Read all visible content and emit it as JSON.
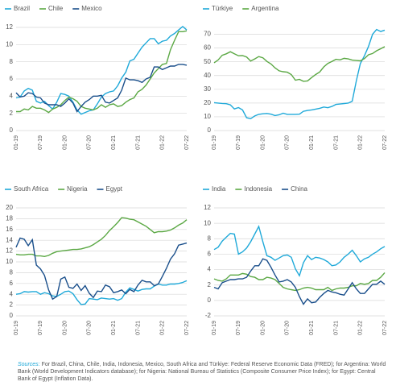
{
  "chart_data": [
    {
      "type": "line",
      "categories": [
        "01-19",
        null,
        null,
        null,
        null,
        null,
        "07-19",
        null,
        null,
        null,
        null,
        null,
        "01-20",
        null,
        null,
        null,
        null,
        null,
        "07-20",
        null,
        null,
        null,
        null,
        null,
        "01-21",
        null,
        null,
        null,
        null,
        null,
        "07-21",
        null,
        null,
        null,
        null,
        null,
        "01-22",
        null,
        null,
        null,
        null,
        null,
        "07-22"
      ],
      "ylim": [
        0,
        12
      ],
      "yticks": [
        0,
        2,
        4,
        6,
        8,
        10,
        12
      ],
      "grid": true,
      "series": [
        {
          "name": "Brazil",
          "color": "#1fa9d9",
          "values": [
            3.8,
            3.9,
            4.6,
            4.9,
            4.7,
            3.4,
            3.2,
            3.4,
            2.9,
            2.5,
            3.3,
            4.3,
            4.2,
            4.0,
            3.3,
            2.4,
            1.9,
            2.1,
            2.3,
            2.4,
            3.1,
            3.9,
            4.3,
            4.5,
            4.6,
            5.2,
            6.1,
            6.8,
            8.1,
            8.3,
            9.0,
            9.7,
            10.2,
            10.7,
            10.7,
            10.1,
            10.4,
            10.5,
            11.0,
            11.3,
            11.7,
            12.1,
            11.7
          ]
        },
        {
          "name": "Chile",
          "color": "#5ba844",
          "values": [
            2.2,
            2.2,
            2.5,
            2.4,
            2.8,
            2.6,
            2.6,
            2.4,
            2.1,
            2.5,
            2.7,
            3.0,
            3.5,
            3.9,
            3.7,
            3.4,
            2.8,
            2.6,
            2.5,
            2.4,
            2.6,
            3.0,
            2.7,
            3.0,
            3.1,
            2.8,
            2.9,
            3.3,
            3.6,
            3.8,
            4.5,
            4.8,
            5.3,
            6.0,
            6.7,
            7.2,
            7.7,
            7.8,
            9.4,
            10.5,
            11.5,
            11.5,
            11.6
          ]
        },
        {
          "name": "Mexico",
          "color": "#1a4f8b",
          "values": [
            4.4,
            3.9,
            4.0,
            4.4,
            4.3,
            3.9,
            3.8,
            3.2,
            3.0,
            3.0,
            3.0,
            2.8,
            3.2,
            3.7,
            3.2,
            2.2,
            2.8,
            3.3,
            3.6,
            4.0,
            4.0,
            4.1,
            3.3,
            3.2,
            3.5,
            3.8,
            4.7,
            6.1,
            5.9,
            5.9,
            5.8,
            5.6,
            6.0,
            6.2,
            7.4,
            7.4,
            7.1,
            7.3,
            7.5,
            7.5,
            7.7,
            7.7,
            7.6
          ]
        }
      ]
    },
    {
      "type": "line",
      "categories": [
        "01-19",
        null,
        null,
        null,
        null,
        null,
        "07-19",
        null,
        null,
        null,
        null,
        null,
        "01-20",
        null,
        null,
        null,
        null,
        null,
        "07-20",
        null,
        null,
        null,
        null,
        null,
        "01-21",
        null,
        null,
        null,
        null,
        null,
        "07-21",
        null,
        null,
        null,
        null,
        null,
        "01-22",
        null,
        null,
        null,
        null,
        null,
        "07-22"
      ],
      "ylim": [
        0,
        75
      ],
      "yticks": [
        0,
        10,
        20,
        30,
        40,
        50,
        60,
        70
      ],
      "grid": true,
      "series": [
        {
          "name": "Türkiye",
          "color": "#1fa9d9",
          "values": [
            20.3,
            20.0,
            19.7,
            19.5,
            18.7,
            15.7,
            16.7,
            15.0,
            9.3,
            8.6,
            10.6,
            11.8,
            12.2,
            12.4,
            11.9,
            10.9,
            11.4,
            12.6,
            11.8,
            11.8,
            11.8,
            11.9,
            14.0,
            14.6,
            15.0,
            15.6,
            16.2,
            17.1,
            16.6,
            17.5,
            19.0,
            19.3,
            19.6,
            19.9,
            21.3,
            36.1,
            48.7,
            54.4,
            61.1,
            70.0,
            73.5,
            72.0,
            73.0
          ]
        },
        {
          "name": "Argentina",
          "color": "#5ba844",
          "values": [
            49.3,
            51.3,
            54.7,
            55.8,
            57.3,
            55.8,
            54.4,
            54.5,
            53.5,
            50.5,
            52.1,
            53.8,
            52.9,
            50.3,
            48.4,
            45.6,
            43.4,
            42.8,
            42.4,
            40.7,
            36.6,
            37.2,
            35.8,
            36.1,
            38.5,
            40.7,
            42.6,
            46.3,
            48.8,
            50.2,
            51.8,
            51.4,
            52.5,
            52.1,
            51.2,
            50.9,
            50.7,
            52.3,
            55.1,
            56.0,
            58.0,
            59.5,
            61.0
          ]
        }
      ]
    },
    {
      "type": "line",
      "categories": [
        "01-19",
        null,
        null,
        null,
        null,
        null,
        "07-19",
        null,
        null,
        null,
        null,
        null,
        "01-20",
        null,
        null,
        null,
        null,
        null,
        "07-20",
        null,
        null,
        null,
        null,
        null,
        "01-21",
        null,
        null,
        null,
        null,
        null,
        "07-21",
        null,
        null,
        null,
        null,
        null,
        "01-22",
        null,
        null,
        null,
        null,
        null,
        "07-22"
      ],
      "ylim": [
        0,
        20
      ],
      "yticks": [
        0,
        2,
        4,
        6,
        8,
        10,
        12,
        14,
        16,
        18,
        20
      ],
      "grid": true,
      "series": [
        {
          "name": "South Africa",
          "color": "#1fa9d9",
          "values": [
            4.0,
            4.1,
            4.5,
            4.4,
            4.5,
            4.5,
            4.0,
            4.3,
            4.1,
            3.7,
            3.6,
            4.0,
            4.5,
            4.6,
            4.1,
            3.0,
            2.1,
            2.2,
            3.2,
            3.1,
            3.0,
            3.3,
            3.2,
            3.1,
            3.2,
            2.9,
            3.2,
            4.4,
            5.2,
            4.9,
            4.6,
            4.9,
            5.0,
            5.0,
            5.5,
            5.9,
            5.7,
            5.7,
            5.9,
            5.9,
            6.0,
            6.2,
            6.5
          ]
        },
        {
          "name": "Nigeria",
          "color": "#5ba844",
          "values": [
            11.4,
            11.3,
            11.3,
            11.4,
            11.4,
            11.1,
            11.1,
            11.0,
            11.2,
            11.6,
            11.9,
            12.0,
            12.1,
            12.2,
            12.3,
            12.3,
            12.4,
            12.6,
            12.8,
            13.2,
            13.7,
            14.2,
            14.9,
            15.8,
            16.5,
            17.3,
            18.2,
            18.1,
            17.9,
            17.8,
            17.4,
            17.0,
            16.6,
            16.0,
            15.4,
            15.6,
            15.6,
            15.7,
            15.9,
            16.3,
            16.8,
            17.2,
            17.8
          ]
        },
        {
          "name": "Egypt",
          "color": "#1a4f8b",
          "values": [
            12.7,
            14.4,
            14.2,
            13.0,
            14.1,
            9.4,
            8.7,
            7.5,
            4.8,
            3.1,
            3.6,
            6.8,
            7.2,
            5.3,
            5.1,
            5.9,
            4.7,
            5.6,
            4.2,
            3.4,
            4.6,
            4.5,
            5.7,
            5.4,
            4.3,
            4.5,
            4.8,
            4.1,
            4.9,
            4.5,
            5.7,
            6.6,
            6.3,
            6.3,
            5.6,
            5.9,
            7.3,
            8.8,
            10.5,
            11.5,
            13.1,
            13.3,
            13.5
          ]
        }
      ]
    },
    {
      "type": "line",
      "categories": [
        "01-19",
        null,
        null,
        null,
        null,
        null,
        "07-19",
        null,
        null,
        null,
        null,
        null,
        "01-20",
        null,
        null,
        null,
        null,
        null,
        "07-20",
        null,
        null,
        null,
        null,
        null,
        "01-21",
        null,
        null,
        null,
        null,
        null,
        "07-21",
        null,
        null,
        null,
        null,
        null,
        "01-22",
        null,
        null,
        null,
        null,
        null,
        "07-22"
      ],
      "ylim": [
        -2,
        12
      ],
      "yticks": [
        -2,
        0,
        2,
        4,
        6,
        8,
        10,
        12
      ],
      "grid": true,
      "series": [
        {
          "name": "India",
          "color": "#1fa9d9",
          "values": [
            6.6,
            6.9,
            7.7,
            8.2,
            8.7,
            8.6,
            6.0,
            6.3,
            6.8,
            7.6,
            8.6,
            9.6,
            7.6,
            5.8,
            5.6,
            5.2,
            5.5,
            5.8,
            5.9,
            5.6,
            4.1,
            3.2,
            4.9,
            5.8,
            5.3,
            5.6,
            5.5,
            5.3,
            5.0,
            4.5,
            4.6,
            5.0,
            5.6,
            6.0,
            6.5,
            5.8,
            5.0,
            5.4,
            5.6,
            6.0,
            6.3,
            6.7,
            7.0
          ]
        },
        {
          "name": "Indonesia",
          "color": "#5ba844",
          "values": [
            2.8,
            2.6,
            2.5,
            2.8,
            3.3,
            3.3,
            3.3,
            3.5,
            3.4,
            3.1,
            3.0,
            2.7,
            2.7,
            3.0,
            2.9,
            2.7,
            2.2,
            1.7,
            1.5,
            1.4,
            1.3,
            1.4,
            1.6,
            1.7,
            1.6,
            1.4,
            1.4,
            1.4,
            1.7,
            1.3,
            1.5,
            1.6,
            1.6,
            1.7,
            1.9,
            1.9,
            2.2,
            2.1,
            2.2,
            2.6,
            2.6,
            3.0,
            3.6
          ]
        },
        {
          "name": "China",
          "color": "#1a4f8b",
          "values": [
            1.7,
            1.5,
            2.3,
            2.5,
            2.7,
            2.7,
            2.8,
            2.8,
            3.0,
            3.8,
            4.5,
            4.5,
            5.4,
            5.2,
            4.3,
            3.3,
            2.4,
            2.5,
            2.7,
            2.4,
            1.7,
            0.5,
            -0.5,
            0.2,
            -0.3,
            -0.2,
            0.4,
            0.9,
            1.3,
            1.1,
            1.0,
            0.8,
            0.7,
            1.5,
            2.3,
            1.5,
            0.9,
            0.9,
            1.5,
            2.1,
            2.1,
            2.5,
            2.1
          ]
        }
      ]
    }
  ],
  "source_label": "Sources:",
  "source_text": "For Brazil, China, Chile, India, Indonesia, Mexico, South Africa and Türkiye: Federal Reserve Economic Data (FRED); for Argentina: World Bank (World Development Indicators database); for Nigeria: National Bureau of Statistics (Composite Consumer Price Index); for Egypt: Central Bank of Egypt (Inflation Data)."
}
